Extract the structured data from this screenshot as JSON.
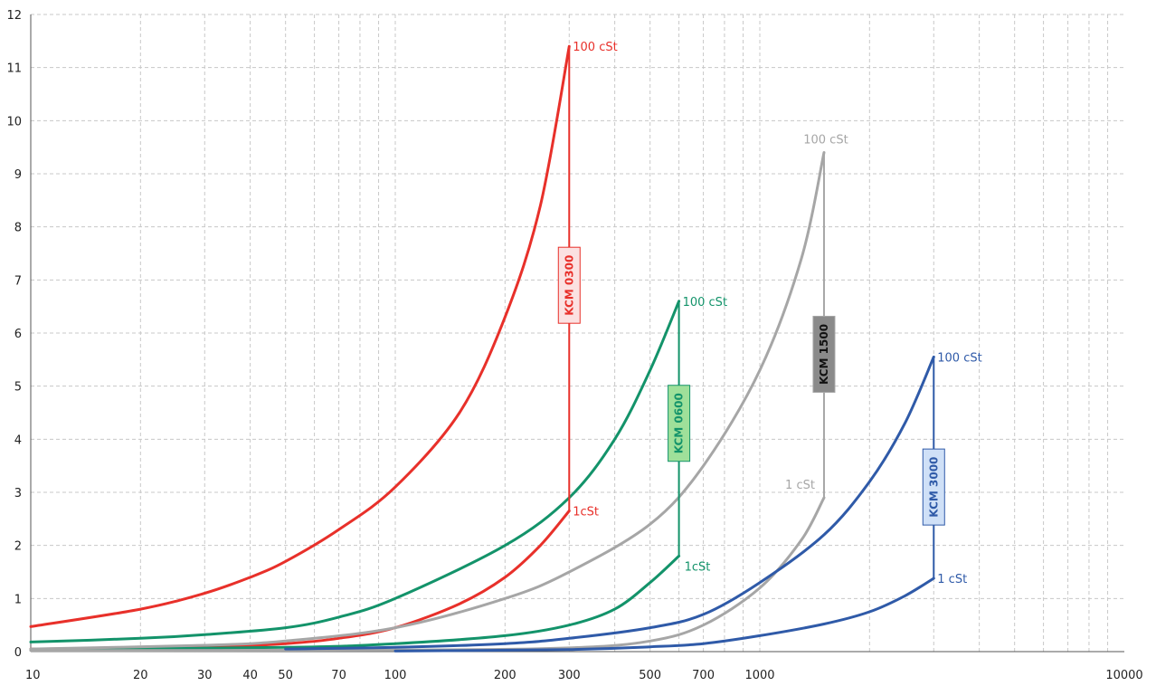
{
  "chart_data": {
    "type": "line",
    "title": "",
    "xlabel": "",
    "ylabel": "",
    "xscale": "log",
    "xlim": [
      10,
      10000
    ],
    "ylim": [
      0,
      12
    ],
    "grid": true,
    "x_tick_labels": [
      "10",
      "20",
      "30",
      "40",
      "50",
      "70",
      "100",
      "200",
      "300",
      "500",
      "700",
      "1000",
      "10000"
    ],
    "x_tick_values": [
      10,
      20,
      30,
      40,
      50,
      70,
      100,
      200,
      300,
      500,
      700,
      1000,
      10000
    ],
    "y_tick_labels": [
      "0",
      "1",
      "2",
      "3",
      "4",
      "5",
      "6",
      "7",
      "8",
      "9",
      "10",
      "11",
      "12"
    ],
    "series": [
      {
        "name": "KCM 0300 100 cSt",
        "color": "#e8302a",
        "points": [
          [
            10,
            0.47
          ],
          [
            20,
            0.8
          ],
          [
            30,
            1.1
          ],
          [
            40,
            1.4
          ],
          [
            50,
            1.7
          ],
          [
            70,
            2.3
          ],
          [
            100,
            3.1
          ],
          [
            150,
            4.5
          ],
          [
            200,
            6.3
          ],
          [
            250,
            8.4
          ],
          [
            300,
            11.4
          ]
        ]
      },
      {
        "name": "KCM 0300 1 cSt",
        "color": "#e8302a",
        "points": [
          [
            10,
            0.05
          ],
          [
            30,
            0.08
          ],
          [
            50,
            0.15
          ],
          [
            70,
            0.25
          ],
          [
            100,
            0.45
          ],
          [
            150,
            0.9
          ],
          [
            200,
            1.4
          ],
          [
            250,
            2.0
          ],
          [
            300,
            2.65
          ]
        ]
      },
      {
        "name": "KCM 0600 100 cSt",
        "color": "#13936a",
        "points": [
          [
            10,
            0.18
          ],
          [
            20,
            0.25
          ],
          [
            30,
            0.32
          ],
          [
            50,
            0.45
          ],
          [
            70,
            0.65
          ],
          [
            100,
            1.0
          ],
          [
            200,
            2.0
          ],
          [
            300,
            2.9
          ],
          [
            400,
            4.0
          ],
          [
            500,
            5.3
          ],
          [
            600,
            6.6
          ]
        ]
      },
      {
        "name": "KCM 0600 1 cSt",
        "color": "#13936a",
        "points": [
          [
            10,
            0.04
          ],
          [
            50,
            0.08
          ],
          [
            100,
            0.15
          ],
          [
            200,
            0.3
          ],
          [
            300,
            0.5
          ],
          [
            400,
            0.8
          ],
          [
            500,
            1.3
          ],
          [
            600,
            1.8
          ]
        ]
      },
      {
        "name": "KCM 1500 100 cSt",
        "color": "#a6a6a6",
        "points": [
          [
            10,
            0.05
          ],
          [
            30,
            0.12
          ],
          [
            50,
            0.2
          ],
          [
            100,
            0.45
          ],
          [
            200,
            1.0
          ],
          [
            300,
            1.5
          ],
          [
            500,
            2.4
          ],
          [
            700,
            3.5
          ],
          [
            1000,
            5.3
          ],
          [
            1300,
            7.4
          ],
          [
            1500,
            9.4
          ]
        ]
      },
      {
        "name": "KCM 1500 1 cSt",
        "color": "#a6a6a6",
        "points": [
          [
            10,
            0.02
          ],
          [
            100,
            0.03
          ],
          [
            300,
            0.07
          ],
          [
            500,
            0.2
          ],
          [
            700,
            0.5
          ],
          [
            1000,
            1.2
          ],
          [
            1300,
            2.1
          ],
          [
            1500,
            2.9
          ]
        ]
      },
      {
        "name": "KCM 3000 100 cSt",
        "color": "#2f5aa8",
        "points": [
          [
            50,
            0.05
          ],
          [
            100,
            0.08
          ],
          [
            200,
            0.15
          ],
          [
            300,
            0.25
          ],
          [
            500,
            0.45
          ],
          [
            700,
            0.7
          ],
          [
            1000,
            1.3
          ],
          [
            1500,
            2.2
          ],
          [
            2000,
            3.2
          ],
          [
            2500,
            4.3
          ],
          [
            3000,
            5.55
          ]
        ]
      },
      {
        "name": "KCM 3000 1 cSt",
        "color": "#2f5aa8",
        "points": [
          [
            100,
            0.01
          ],
          [
            300,
            0.04
          ],
          [
            500,
            0.09
          ],
          [
            700,
            0.15
          ],
          [
            1000,
            0.3
          ],
          [
            1500,
            0.52
          ],
          [
            2000,
            0.75
          ],
          [
            2500,
            1.05
          ],
          [
            3000,
            1.38
          ]
        ]
      }
    ],
    "model_brackets": [
      {
        "label": "KCM 0300",
        "x": 300,
        "y_low": 2.65,
        "y_high": 11.4,
        "color": "#e8302a",
        "box_fill": "#fbe1e1",
        "box_text": "#e8302a",
        "box_y": 6.9
      },
      {
        "label": "KCM 0600",
        "x": 600,
        "y_low": 1.8,
        "y_high": 6.6,
        "color": "#13936a",
        "box_fill": "#9fe09a",
        "box_text": "#13936a",
        "box_y": 4.3
      },
      {
        "label": "KCM 1500",
        "x": 1500,
        "y_low": 2.9,
        "y_high": 9.4,
        "color": "#a6a6a6",
        "box_fill": "#8a8a8a",
        "box_text": "#111111",
        "box_y": 5.6
      },
      {
        "label": "KCM 3000",
        "x": 3000,
        "y_low": 1.38,
        "y_high": 5.55,
        "color": "#2f5aa8",
        "box_fill": "#cfe0f7",
        "box_text": "#2f5aa8",
        "box_y": 3.1
      }
    ],
    "annotations": [
      {
        "text": "100 cSt",
        "x": 300,
        "y": 11.4,
        "color": "#e8302a",
        "anchor": "right"
      },
      {
        "text": "1cSt",
        "x": 300,
        "y": 2.65,
        "color": "#e8302a",
        "anchor": "right"
      },
      {
        "text": "100 cSt",
        "x": 600,
        "y": 6.6,
        "color": "#13936a",
        "anchor": "right"
      },
      {
        "text": "1cSt",
        "x": 600,
        "y": 1.8,
        "color": "#13936a",
        "anchor": "right-below"
      },
      {
        "text": "100 cSt",
        "x": 1500,
        "y": 9.4,
        "color": "#a6a6a6",
        "anchor": "above-left"
      },
      {
        "text": "1 cSt",
        "x": 1500,
        "y": 2.9,
        "color": "#a6a6a6",
        "anchor": "left"
      },
      {
        "text": "100 cSt",
        "x": 3000,
        "y": 5.55,
        "color": "#2f5aa8",
        "anchor": "right"
      },
      {
        "text": "1 cSt",
        "x": 3000,
        "y": 1.38,
        "color": "#2f5aa8",
        "anchor": "right"
      }
    ]
  }
}
